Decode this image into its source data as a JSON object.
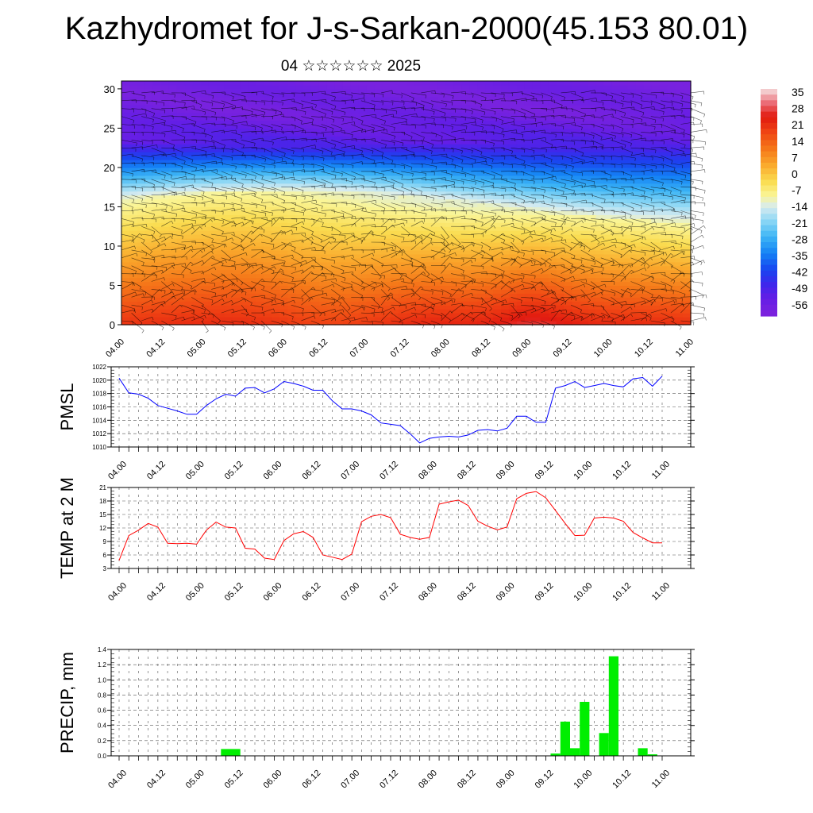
{
  "page": {
    "title": "Kazhydromet for J-s-Sarkan-2000(45.153 80.01)",
    "subtitle": "04 ☆☆☆☆☆☆ 2025"
  },
  "chart_data": [
    {
      "type": "heatmap",
      "title": "",
      "xlabel": "",
      "ylabel": "",
      "x_ticks": [
        "04.00",
        "04.12",
        "05.00",
        "05.12",
        "06.00",
        "06.12",
        "07.00",
        "07.12",
        "08.00",
        "08.12",
        "09.00",
        "09.12",
        "10.00",
        "10.12",
        "11.00"
      ],
      "y_ticks": [
        0,
        5,
        10,
        15,
        20,
        25,
        30
      ],
      "ylim": [
        0,
        31
      ],
      "colorbar": {
        "labels": [
          35,
          28,
          21,
          14,
          7,
          0,
          -7,
          -14,
          -21,
          -28,
          -35,
          -42,
          -49,
          -56
        ],
        "range": [
          -60,
          38
        ]
      },
      "description_values": {
        "temperature_at_levels": [
          {
            "level": 1,
            "temp": 25
          },
          {
            "level": 8,
            "temp": 12
          },
          {
            "level": 14,
            "temp": -10
          },
          {
            "level": 19,
            "temp": -30
          },
          {
            "level": 23,
            "temp": -49
          },
          {
            "level": 28,
            "temp": -56
          }
        ]
      },
      "overlay": "wind barbs"
    },
    {
      "type": "line",
      "ylabel": "PMSL",
      "x_ticks": [
        "04.00",
        "04.12",
        "05.00",
        "05.12",
        "06.00",
        "06.12",
        "07.00",
        "07.12",
        "08.00",
        "08.12",
        "09.00",
        "09.12",
        "10.00",
        "10.12",
        "11.00"
      ],
      "ylim": [
        1010,
        1022
      ],
      "y_ticks": [
        1010,
        1012,
        1014,
        1016,
        1018,
        1020,
        1022
      ],
      "color": "#0000ff",
      "series": [
        {
          "values": [
            1020.3,
            1018.1,
            1017.9,
            1017.3,
            1016.2,
            1015.8,
            1015.4,
            1014.9,
            1014.9,
            1016.2,
            1017.2,
            1017.9,
            1017.6,
            1018.8,
            1018.9,
            1018.1,
            1018.7,
            1019.8,
            1019.5,
            1019.1,
            1018.5,
            1018.5,
            1016.9,
            1015.7,
            1015.7,
            1015.4,
            1014.8,
            1013.6,
            1013.4,
            1013.2,
            1012.0,
            1010.6,
            1011.3,
            1011.5,
            1011.6,
            1011.5,
            1011.8,
            1012.5,
            1012.6,
            1012.4,
            1012.8,
            1014.6,
            1014.6,
            1013.7,
            1013.7,
            1018.8,
            1019.2,
            1019.8,
            1018.9,
            1019.2,
            1019.5,
            1019.2,
            1019.0,
            1020.2,
            1020.4,
            1019.1,
            1020.6
          ]
        }
      ]
    },
    {
      "type": "line",
      "ylabel": "TEMP at 2 M",
      "x_ticks": [
        "04.00",
        "04.12",
        "05.00",
        "05.12",
        "06.00",
        "06.12",
        "07.00",
        "07.12",
        "08.00",
        "08.12",
        "09.00",
        "09.12",
        "10.00",
        "10.12",
        "11.00"
      ],
      "ylim": [
        3,
        21
      ],
      "y_ticks": [
        3,
        6,
        9,
        12,
        15,
        18,
        21
      ],
      "color": "#ff0000",
      "series": [
        {
          "values": [
            4.8,
            10.3,
            11.5,
            13.0,
            12.2,
            8.6,
            8.5,
            8.6,
            8.4,
            11.5,
            13.3,
            12.2,
            12.0,
            7.5,
            7.3,
            5.3,
            5.0,
            9.2,
            10.7,
            11.2,
            9.9,
            6.0,
            5.5,
            5.0,
            6.2,
            13.4,
            14.6,
            15.0,
            14.3,
            10.6,
            9.9,
            9.5,
            9.9,
            17.3,
            17.8,
            18.2,
            17.0,
            13.5,
            12.4,
            11.6,
            12.2,
            18.5,
            19.7,
            20.1,
            18.7,
            15.9,
            13.0,
            10.3,
            10.4,
            14.2,
            14.4,
            14.2,
            13.5,
            11.0,
            9.8,
            8.7,
            8.7
          ]
        }
      ]
    },
    {
      "type": "bar",
      "ylabel": "PRECIP, mm",
      "x_ticks": [
        "04.00",
        "04.12",
        "05.00",
        "05.12",
        "06.00",
        "06.12",
        "07.00",
        "07.12",
        "08.00",
        "08.12",
        "09.00",
        "09.12",
        "10.00",
        "10.12",
        "11.00"
      ],
      "ylim": [
        0,
        1.4
      ],
      "y_ticks": [
        "0.0",
        "0.2",
        "0.4",
        "0.6",
        "0.8",
        "1.0",
        "1.2",
        "1.4"
      ],
      "color": "#00ee00",
      "series": [
        {
          "values": [
            0,
            0,
            0,
            0,
            0,
            0,
            0,
            0,
            0,
            0,
            0,
            0.09,
            0.09,
            0,
            0,
            0,
            0,
            0,
            0,
            0,
            0,
            0,
            0,
            0,
            0,
            0,
            0,
            0,
            0,
            0,
            0,
            0,
            0,
            0,
            0,
            0,
            0,
            0,
            0,
            0,
            0,
            0,
            0,
            0,
            0,
            0.03,
            0.45,
            0.1,
            0.71,
            0,
            0.3,
            1.31,
            0,
            0,
            0.1,
            0.02,
            0
          ]
        }
      ]
    }
  ]
}
